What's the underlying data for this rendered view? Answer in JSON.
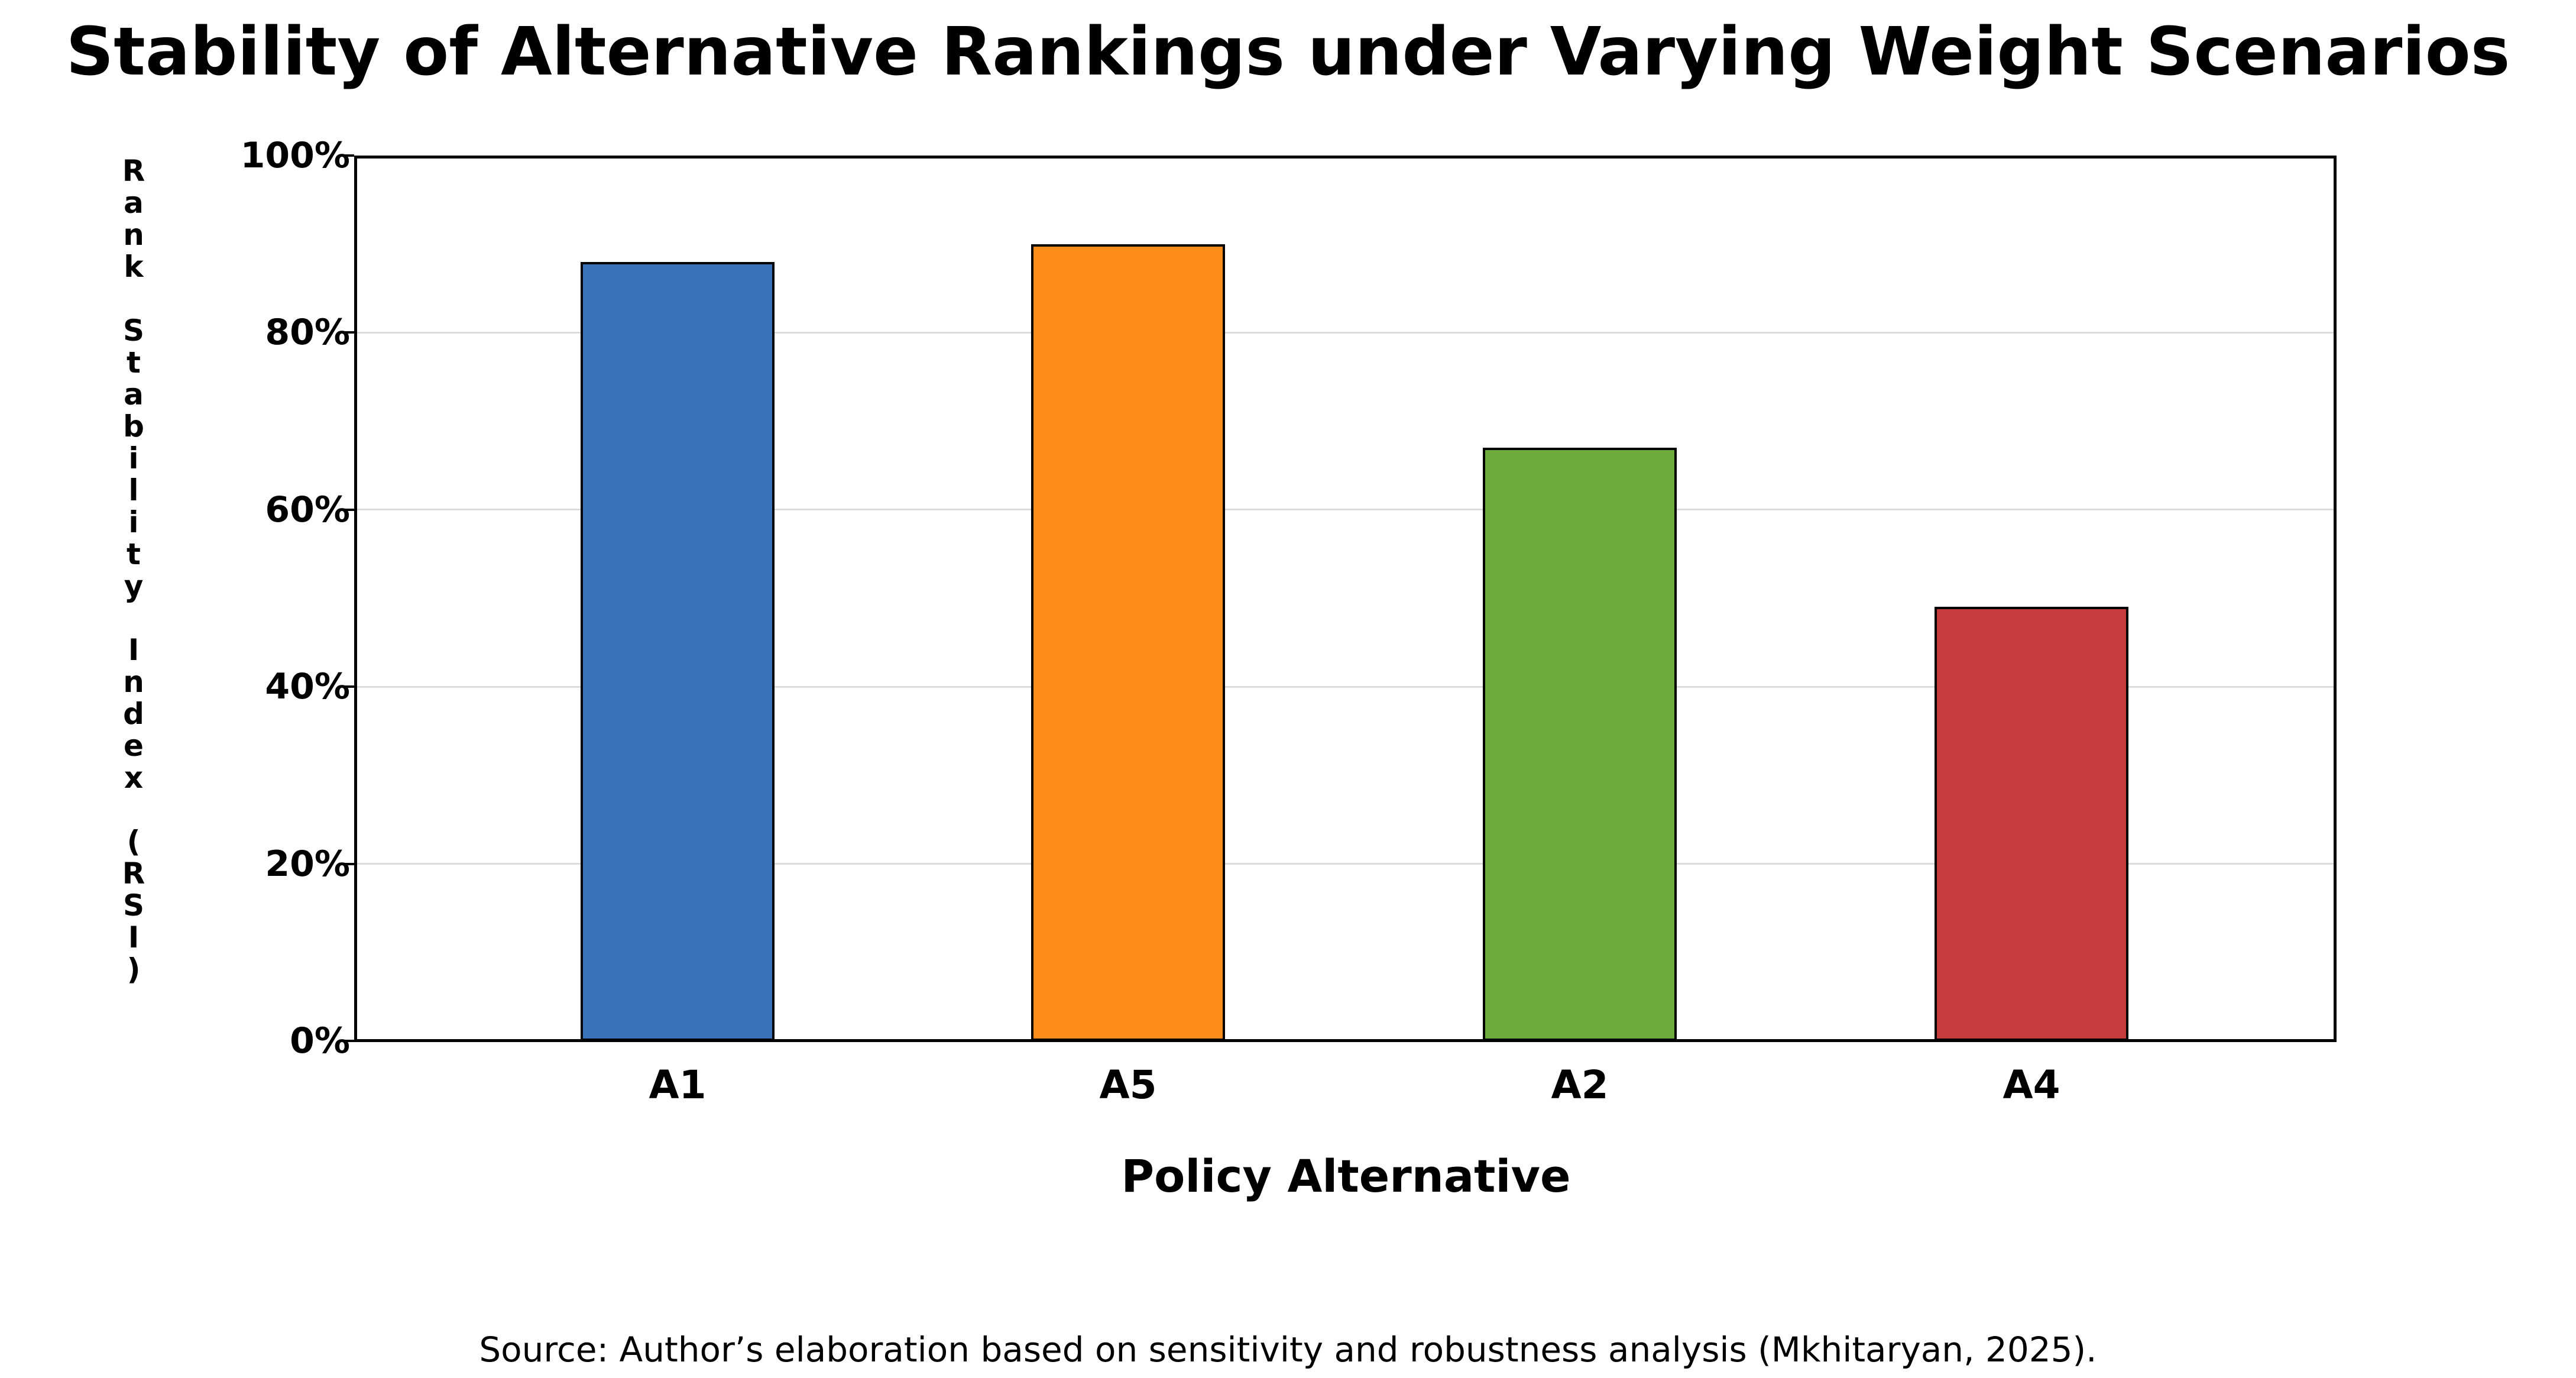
{
  "chart_data": {
    "type": "bar",
    "title": "Stability of Alternative Rankings under Varying Weight Scenarios",
    "xlabel": "Policy Alternative",
    "ylabel": "Rank Stability Index (RSI)",
    "categories": [
      "A1",
      "A5",
      "A2",
      "A4"
    ],
    "values": [
      88,
      90,
      67,
      49
    ],
    "unit": "%",
    "bar_colors": [
      "#3A73B9",
      "#FC8D1B",
      "#6DAB3C",
      "#C63B3B"
    ],
    "ylim": [
      0,
      100
    ],
    "yticks": [
      {
        "label": "0%",
        "value": 0
      },
      {
        "label": "20%",
        "value": 20
      },
      {
        "label": "40%",
        "value": 40
      },
      {
        "label": "60%",
        "value": 60
      },
      {
        "label": "80%",
        "value": 80
      },
      {
        "label": "100%",
        "value": 100
      }
    ],
    "grid": "horizontal",
    "legend": "none",
    "source": "Source: Author’s elaboration based on sensitivity and robustness analysis (Mkhitaryan, 2025)."
  },
  "colors": {
    "background": "#FFFFFF",
    "frame": "#000000",
    "gridline": "#DCDCDC",
    "bar_edge": "#000000",
    "text": "#000000"
  }
}
